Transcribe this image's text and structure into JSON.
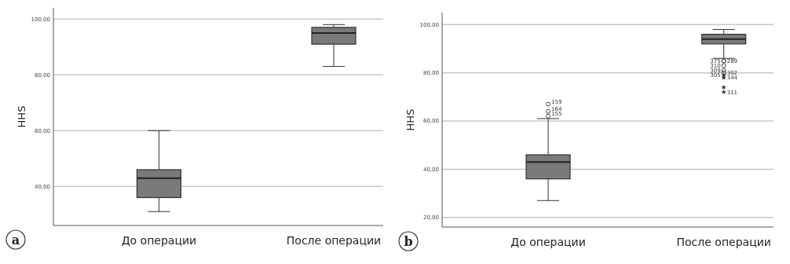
{
  "chart_data": [
    {
      "type": "box",
      "ylabel": "HHS",
      "categories": [
        "До операции",
        "После операции"
      ],
      "ylim": [
        26,
        104
      ],
      "yticks": [
        {
          "value": 40,
          "label": "40,00"
        },
        {
          "value": 60,
          "label": "60,00"
        },
        {
          "value": 80,
          "label": "80,00"
        },
        {
          "value": 100,
          "label": "100,00"
        }
      ],
      "grid": "y",
      "color": "#7a7a7a",
      "boxes": [
        {
          "low": 31,
          "q1": 36,
          "median": 43,
          "q3": 46,
          "high": 60
        },
        {
          "low": 83,
          "q1": 91,
          "median": 95,
          "q3": 97,
          "high": 98
        }
      ],
      "annotations": [
        "a"
      ]
    },
    {
      "type": "box",
      "ylabel": "HHS",
      "categories": [
        "До операции",
        "После операции"
      ],
      "ylim": [
        16,
        105
      ],
      "yticks": [
        {
          "value": 20,
          "label": "20,00"
        },
        {
          "value": 40,
          "label": "40,00"
        },
        {
          "value": 60,
          "label": "60,00"
        },
        {
          "value": 80,
          "label": "80,00"
        },
        {
          "value": 100,
          "label": "100,00"
        }
      ],
      "grid": "y",
      "color": "#7a7a7a",
      "boxes": [
        {
          "low": 27,
          "q1": 36,
          "median": 43,
          "q3": 46,
          "high": 61,
          "outliers": [
            67,
            64,
            62
          ]
        },
        {
          "low": 86,
          "q1": 92,
          "median": 94,
          "q3": 96,
          "high": 98,
          "outliers": [
            85,
            85,
            83,
            80,
            81,
            78,
            79,
            72,
            74
          ]
        }
      ],
      "annotations": [
        "b",
        "159",
        "164",
        "155",
        "375",
        "289",
        "310",
        "302",
        "309",
        "344",
        "305",
        "311"
      ]
    }
  ]
}
